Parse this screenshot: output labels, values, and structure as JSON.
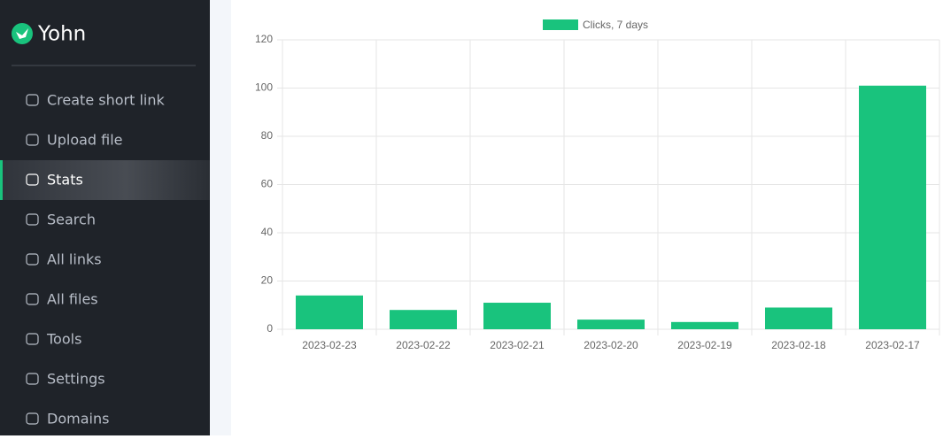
{
  "sidebar": {
    "brand": "Yohn",
    "active": 2,
    "items": [
      "Create short link",
      "Upload file",
      "Stats",
      "Search",
      "All links",
      "All files",
      "Tools",
      "Settings",
      "Domains"
    ]
  },
  "chart_data": {
    "type": "bar",
    "legend": "Clicks, 7 days",
    "color": "#19c37d",
    "categories": [
      "2023-02-23",
      "2023-02-22",
      "2023-02-21",
      "2023-02-20",
      "2023-02-19",
      "2023-02-18",
      "2023-02-17"
    ],
    "values": [
      14,
      8,
      11,
      4,
      3,
      9,
      101
    ],
    "ylim": [
      0,
      120
    ],
    "yticks": [
      0,
      20,
      40,
      60,
      80,
      100,
      120
    ],
    "grid": true
  }
}
